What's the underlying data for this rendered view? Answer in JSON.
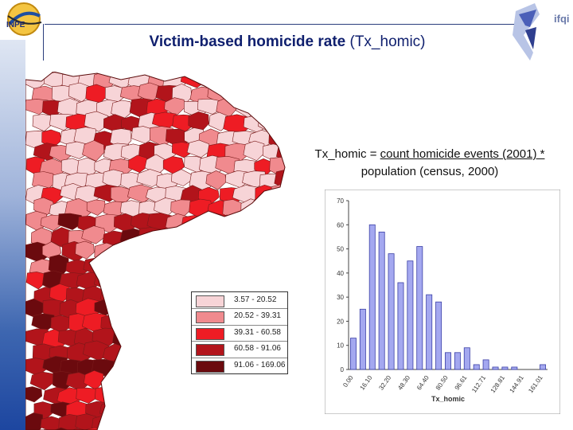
{
  "header": {
    "title_bold": "Victim-based homicide rate",
    "title_plain": " (Tx_homic)",
    "logo_left_text": "INPE",
    "logo_right_text": "ifqi"
  },
  "formula": {
    "line1_prefix": "Tx_homic = ",
    "line1_underlined": "count homicide events (2001) *",
    "line2": "population (census, 2000)"
  },
  "legend": {
    "items": [
      {
        "label": "3.57 - 20.52",
        "color": "#f7d4d7"
      },
      {
        "label": "20.52 - 39.31",
        "color": "#f08a8e"
      },
      {
        "label": "39.31 - 60.58",
        "color": "#ee1c24"
      },
      {
        "label": "60.58 - 91.06",
        "color": "#b2141b"
      },
      {
        "label": "91.06 - 169.06",
        "color": "#6b0a0e"
      }
    ]
  },
  "chart_data": {
    "type": "bar",
    "xlabel": "Tx_homic",
    "ylabel": "",
    "ylim": [
      0,
      70
    ],
    "yticks": [
      0,
      10,
      20,
      30,
      40,
      50,
      60,
      70
    ],
    "xtick_labels": [
      "0.00",
      "16.10",
      "32.20",
      "48.30",
      "64.40",
      "80.50",
      "96.61",
      "112.71",
      "128.81",
      "144.91",
      "161.01"
    ],
    "bin_width": 8.05,
    "values": [
      13,
      25,
      60,
      57,
      48,
      36,
      45,
      51,
      31,
      28,
      7,
      7,
      9,
      2,
      4,
      1,
      1,
      1,
      0,
      0,
      2
    ],
    "bar_color": "#a4a8f0",
    "bar_edge": "#3a3fa6",
    "grid": false
  }
}
